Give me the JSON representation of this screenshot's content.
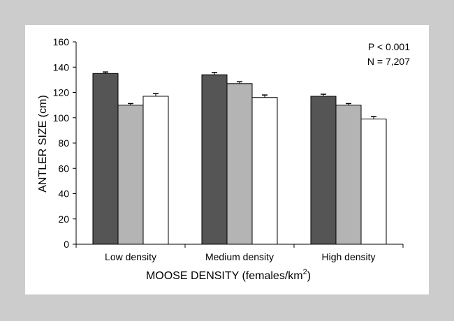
{
  "chart_data": {
    "type": "bar",
    "title": "",
    "xlabel": "MOOSE DENSITY (females/km",
    "xlabel_superscript": "2",
    "xlabel_suffix": ")",
    "ylabel": "ANTLER SIZE (cm)",
    "ylim": [
      0,
      160
    ],
    "yticks": [
      0,
      20,
      40,
      60,
      80,
      100,
      120,
      140,
      160
    ],
    "categories": [
      "Low density",
      "Medium density",
      "High density"
    ],
    "series": [
      {
        "color": "#555555",
        "values": [
          135,
          134,
          117
        ],
        "errors": [
          1.2,
          1.8,
          1.6
        ]
      },
      {
        "color": "#b4b4b4",
        "values": [
          110,
          127,
          110
        ],
        "errors": [
          1.2,
          1.5,
          1.2
        ]
      },
      {
        "color": "#ffffff",
        "values": [
          117,
          116,
          99
        ],
        "errors": [
          2.2,
          2.0,
          2.0
        ]
      }
    ],
    "annotations": [
      "P < 0.001",
      "N = 7,207"
    ],
    "grid": false,
    "legend": "none"
  }
}
